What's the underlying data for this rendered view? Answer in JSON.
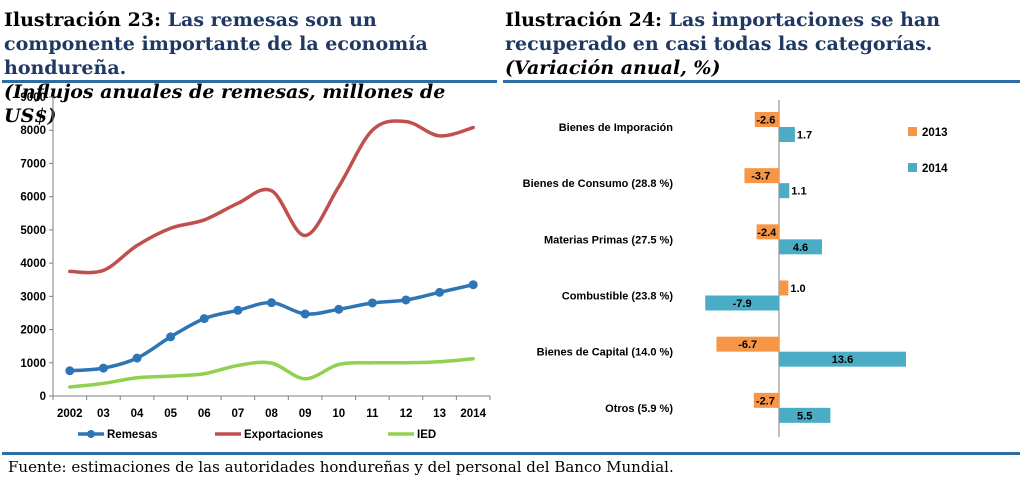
{
  "left": {
    "label": "Ilustración 23:",
    "title": "Las remesas son un componente importante de la economía hondureña.",
    "subtitle": "(Influjos anuales de remesas, millones de US$)"
  },
  "right": {
    "label": "Ilustración 24:",
    "title": "Las importaciones se han recuperado en casi todas las categorías.",
    "subtitle": "(Variación anual, %)"
  },
  "source": "Fuente: estimaciones de las autoridades hondureñas y del personal del Banco Mundial.",
  "chart_data": [
    {
      "type": "line",
      "categories": [
        "2002",
        "03",
        "04",
        "05",
        "06",
        "07",
        "08",
        "09",
        "10",
        "11",
        "12",
        "13",
        "2014"
      ],
      "ylim": [
        0,
        9000
      ],
      "yticks": [
        0,
        1000,
        2000,
        3000,
        4000,
        5000,
        6000,
        7000,
        8000,
        9000
      ],
      "grid": false,
      "legend": "bottom",
      "series": [
        {
          "name": "Remesas",
          "color": "#2e75b6",
          "markers": true,
          "values": [
            760,
            840,
            1140,
            1780,
            2330,
            2580,
            2810,
            2470,
            2610,
            2800,
            2890,
            3120,
            3350
          ]
        },
        {
          "name": "Exportaciones",
          "color": "#c0504d",
          "markers": false,
          "values": [
            3750,
            3780,
            4530,
            5050,
            5300,
            5800,
            6180,
            4830,
            6300,
            8000,
            8260,
            7830,
            8080
          ]
        },
        {
          "name": "IED",
          "color": "#92d050",
          "markers": false,
          "values": [
            270,
            380,
            550,
            600,
            670,
            920,
            990,
            520,
            950,
            1000,
            1000,
            1030,
            1120
          ]
        }
      ]
    },
    {
      "type": "bar",
      "orientation": "horizontal",
      "categories": [
        "Bienes de Imporación",
        "Bienes de Consumo (28.8 %)",
        "Materias Primas (27.5 %)",
        "Combustible (23.8 %)",
        "Bienes de Capital (14.0 %)",
        "Otros (5.9 %)"
      ],
      "xlim": [
        -10,
        14
      ],
      "legend": "right",
      "series": [
        {
          "name": "2013",
          "color": "#f79646",
          "values": [
            -2.6,
            -3.7,
            -2.4,
            1.0,
            -6.7,
            -2.7
          ],
          "labels": [
            "-2.6",
            "-3.7",
            "-2.4",
            "1.0",
            "-6.7",
            "-2.7"
          ]
        },
        {
          "name": "2014",
          "color": "#4bacc6",
          "values": [
            1.7,
            1.1,
            4.6,
            -7.9,
            13.6,
            5.5
          ],
          "labels": [
            "1.7",
            "1.1",
            "4.6",
            "-7.9",
            "13.6",
            "5.5"
          ]
        }
      ]
    }
  ]
}
